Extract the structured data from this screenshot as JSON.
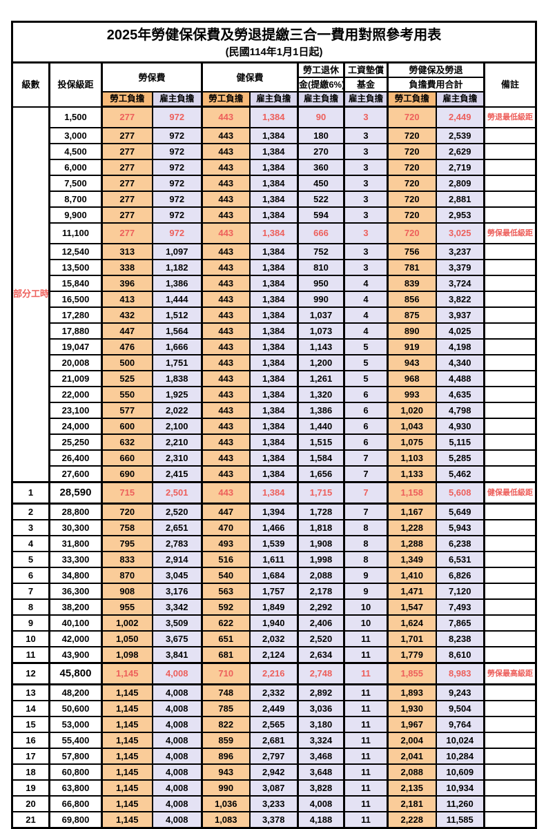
{
  "title": "2025年勞健保保費及勞退提繳三合一費用對照參考用表",
  "subtitle": "(民國114年1月1日起)",
  "header": {
    "level": "級數",
    "bracket": "投保級距",
    "labor_ins": "勞保費",
    "health_ins": "健保費",
    "pension_line1": "勞工退休",
    "pension_line2": "金(提繳6%)",
    "wage_fund_line1": "工資墊償",
    "wage_fund_line2": "基金",
    "total_line1": "勞健保及勞退",
    "total_line2": "負擔費用合計",
    "remark": "備註",
    "employee": "勞工負擔",
    "employer": "雇主負擔"
  },
  "part_time_label": "部分工時",
  "colors": {
    "employee_fill": "#FACC99",
    "employer_fill": "#E4E2F4",
    "employee_header_fill": "#F7BA79",
    "employer_header_fill": "#D9D6ED",
    "highlight_text": "#ED5F5B",
    "border": "#000000"
  },
  "rows": [
    {
      "level": "",
      "bracket": "1,500",
      "li_emp": "277",
      "li_er": "972",
      "hi_emp": "443",
      "hi_er": "1,384",
      "pension": "90",
      "fund": "3",
      "tot_emp": "720",
      "tot_er": "2,449",
      "remark": "勞退最低級距",
      "hl": true,
      "tb": false,
      "bb": false
    },
    {
      "level": "",
      "bracket": "3,000",
      "li_emp": "277",
      "li_er": "972",
      "hi_emp": "443",
      "hi_er": "1,384",
      "pension": "180",
      "fund": "3",
      "tot_emp": "720",
      "tot_er": "2,539",
      "remark": "",
      "hl": false,
      "tb": false,
      "bb": false
    },
    {
      "level": "",
      "bracket": "4,500",
      "li_emp": "277",
      "li_er": "972",
      "hi_emp": "443",
      "hi_er": "1,384",
      "pension": "270",
      "fund": "3",
      "tot_emp": "720",
      "tot_er": "2,629",
      "remark": "",
      "hl": false,
      "tb": false,
      "bb": false
    },
    {
      "level": "",
      "bracket": "6,000",
      "li_emp": "277",
      "li_er": "972",
      "hi_emp": "443",
      "hi_er": "1,384",
      "pension": "360",
      "fund": "3",
      "tot_emp": "720",
      "tot_er": "2,719",
      "remark": "",
      "hl": false,
      "tb": false,
      "bb": false
    },
    {
      "level": "",
      "bracket": "7,500",
      "li_emp": "277",
      "li_er": "972",
      "hi_emp": "443",
      "hi_er": "1,384",
      "pension": "450",
      "fund": "3",
      "tot_emp": "720",
      "tot_er": "2,809",
      "remark": "",
      "hl": false,
      "tb": false,
      "bb": false
    },
    {
      "level": "",
      "bracket": "8,700",
      "li_emp": "277",
      "li_er": "972",
      "hi_emp": "443",
      "hi_er": "1,384",
      "pension": "522",
      "fund": "3",
      "tot_emp": "720",
      "tot_er": "2,881",
      "remark": "",
      "hl": false,
      "tb": false,
      "bb": false
    },
    {
      "level": "",
      "bracket": "9,900",
      "li_emp": "277",
      "li_er": "972",
      "hi_emp": "443",
      "hi_er": "1,384",
      "pension": "594",
      "fund": "3",
      "tot_emp": "720",
      "tot_er": "2,953",
      "remark": "",
      "hl": false,
      "tb": false,
      "bb": false
    },
    {
      "level": "",
      "bracket": "11,100",
      "li_emp": "277",
      "li_er": "972",
      "hi_emp": "443",
      "hi_er": "1,384",
      "pension": "666",
      "fund": "3",
      "tot_emp": "720",
      "tot_er": "3,025",
      "remark": "勞保最低級距",
      "hl": true,
      "tb": false,
      "bb": false
    },
    {
      "level": "",
      "bracket": "12,540",
      "li_emp": "313",
      "li_er": "1,097",
      "hi_emp": "443",
      "hi_er": "1,384",
      "pension": "752",
      "fund": "3",
      "tot_emp": "756",
      "tot_er": "3,237",
      "remark": "",
      "hl": false,
      "tb": false,
      "bb": false
    },
    {
      "level": "",
      "bracket": "13,500",
      "li_emp": "338",
      "li_er": "1,182",
      "hi_emp": "443",
      "hi_er": "1,384",
      "pension": "810",
      "fund": "3",
      "tot_emp": "781",
      "tot_er": "3,379",
      "remark": "",
      "hl": false,
      "tb": false,
      "bb": false
    },
    {
      "level": "",
      "bracket": "15,840",
      "li_emp": "396",
      "li_er": "1,386",
      "hi_emp": "443",
      "hi_er": "1,384",
      "pension": "950",
      "fund": "4",
      "tot_emp": "839",
      "tot_er": "3,724",
      "remark": "",
      "hl": false,
      "tb": false,
      "bb": false
    },
    {
      "level": "",
      "bracket": "16,500",
      "li_emp": "413",
      "li_er": "1,444",
      "hi_emp": "443",
      "hi_er": "1,384",
      "pension": "990",
      "fund": "4",
      "tot_emp": "856",
      "tot_er": "3,822",
      "remark": "",
      "hl": false,
      "tb": false,
      "bb": false
    },
    {
      "level": "",
      "bracket": "17,280",
      "li_emp": "432",
      "li_er": "1,512",
      "hi_emp": "443",
      "hi_er": "1,384",
      "pension": "1,037",
      "fund": "4",
      "tot_emp": "875",
      "tot_er": "3,937",
      "remark": "",
      "hl": false,
      "tb": false,
      "bb": false
    },
    {
      "level": "",
      "bracket": "17,880",
      "li_emp": "447",
      "li_er": "1,564",
      "hi_emp": "443",
      "hi_er": "1,384",
      "pension": "1,073",
      "fund": "4",
      "tot_emp": "890",
      "tot_er": "4,025",
      "remark": "",
      "hl": false,
      "tb": false,
      "bb": false
    },
    {
      "level": "",
      "bracket": "19,047",
      "li_emp": "476",
      "li_er": "1,666",
      "hi_emp": "443",
      "hi_er": "1,384",
      "pension": "1,143",
      "fund": "5",
      "tot_emp": "919",
      "tot_er": "4,198",
      "remark": "",
      "hl": false,
      "tb": false,
      "bb": false
    },
    {
      "level": "",
      "bracket": "20,008",
      "li_emp": "500",
      "li_er": "1,751",
      "hi_emp": "443",
      "hi_er": "1,384",
      "pension": "1,200",
      "fund": "5",
      "tot_emp": "943",
      "tot_er": "4,340",
      "remark": "",
      "hl": false,
      "tb": false,
      "bb": false
    },
    {
      "level": "",
      "bracket": "21,009",
      "li_emp": "525",
      "li_er": "1,838",
      "hi_emp": "443",
      "hi_er": "1,384",
      "pension": "1,261",
      "fund": "5",
      "tot_emp": "968",
      "tot_er": "4,488",
      "remark": "",
      "hl": false,
      "tb": false,
      "bb": false
    },
    {
      "level": "",
      "bracket": "22,000",
      "li_emp": "550",
      "li_er": "1,925",
      "hi_emp": "443",
      "hi_er": "1,384",
      "pension": "1,320",
      "fund": "6",
      "tot_emp": "993",
      "tot_er": "4,635",
      "remark": "",
      "hl": false,
      "tb": false,
      "bb": false
    },
    {
      "level": "",
      "bracket": "23,100",
      "li_emp": "577",
      "li_er": "2,022",
      "hi_emp": "443",
      "hi_er": "1,384",
      "pension": "1,386",
      "fund": "6",
      "tot_emp": "1,020",
      "tot_er": "4,798",
      "remark": "",
      "hl": false,
      "tb": false,
      "bb": false
    },
    {
      "level": "",
      "bracket": "24,000",
      "li_emp": "600",
      "li_er": "2,100",
      "hi_emp": "443",
      "hi_er": "1,384",
      "pension": "1,440",
      "fund": "6",
      "tot_emp": "1,043",
      "tot_er": "4,930",
      "remark": "",
      "hl": false,
      "tb": false,
      "bb": false
    },
    {
      "level": "",
      "bracket": "25,250",
      "li_emp": "632",
      "li_er": "2,210",
      "hi_emp": "443",
      "hi_er": "1,384",
      "pension": "1,515",
      "fund": "6",
      "tot_emp": "1,075",
      "tot_er": "5,115",
      "remark": "",
      "hl": false,
      "tb": false,
      "bb": false
    },
    {
      "level": "",
      "bracket": "26,400",
      "li_emp": "660",
      "li_er": "2,310",
      "hi_emp": "443",
      "hi_er": "1,384",
      "pension": "1,584",
      "fund": "7",
      "tot_emp": "1,103",
      "tot_er": "5,285",
      "remark": "",
      "hl": false,
      "tb": false,
      "bb": false
    },
    {
      "level": "",
      "bracket": "27,600",
      "li_emp": "690",
      "li_er": "2,415",
      "hi_emp": "443",
      "hi_er": "1,384",
      "pension": "1,656",
      "fund": "7",
      "tot_emp": "1,133",
      "tot_er": "5,462",
      "remark": "",
      "hl": false,
      "tb": false,
      "bb": false
    },
    {
      "level": "1",
      "bracket": "28,590",
      "li_emp": "715",
      "li_er": "2,501",
      "hi_emp": "443",
      "hi_er": "1,384",
      "pension": "1,715",
      "fund": "7",
      "tot_emp": "1,158",
      "tot_er": "5,608",
      "remark": "健保最低級距",
      "hl": true,
      "tb": true,
      "bb": true
    },
    {
      "level": "2",
      "bracket": "28,800",
      "li_emp": "720",
      "li_er": "2,520",
      "hi_emp": "447",
      "hi_er": "1,394",
      "pension": "1,728",
      "fund": "7",
      "tot_emp": "1,167",
      "tot_er": "5,649",
      "remark": "",
      "hl": false,
      "tb": false,
      "bb": false
    },
    {
      "level": "3",
      "bracket": "30,300",
      "li_emp": "758",
      "li_er": "2,651",
      "hi_emp": "470",
      "hi_er": "1,466",
      "pension": "1,818",
      "fund": "8",
      "tot_emp": "1,228",
      "tot_er": "5,943",
      "remark": "",
      "hl": false,
      "tb": false,
      "bb": false
    },
    {
      "level": "4",
      "bracket": "31,800",
      "li_emp": "795",
      "li_er": "2,783",
      "hi_emp": "493",
      "hi_er": "1,539",
      "pension": "1,908",
      "fund": "8",
      "tot_emp": "1,288",
      "tot_er": "6,238",
      "remark": "",
      "hl": false,
      "tb": false,
      "bb": false
    },
    {
      "level": "5",
      "bracket": "33,300",
      "li_emp": "833",
      "li_er": "2,914",
      "hi_emp": "516",
      "hi_er": "1,611",
      "pension": "1,998",
      "fund": "8",
      "tot_emp": "1,349",
      "tot_er": "6,531",
      "remark": "",
      "hl": false,
      "tb": false,
      "bb": false
    },
    {
      "level": "6",
      "bracket": "34,800",
      "li_emp": "870",
      "li_er": "3,045",
      "hi_emp": "540",
      "hi_er": "1,684",
      "pension": "2,088",
      "fund": "9",
      "tot_emp": "1,410",
      "tot_er": "6,826",
      "remark": "",
      "hl": false,
      "tb": false,
      "bb": false
    },
    {
      "level": "7",
      "bracket": "36,300",
      "li_emp": "908",
      "li_er": "3,176",
      "hi_emp": "563",
      "hi_er": "1,757",
      "pension": "2,178",
      "fund": "9",
      "tot_emp": "1,471",
      "tot_er": "7,120",
      "remark": "",
      "hl": false,
      "tb": false,
      "bb": false
    },
    {
      "level": "8",
      "bracket": "38,200",
      "li_emp": "955",
      "li_er": "3,342",
      "hi_emp": "592",
      "hi_er": "1,849",
      "pension": "2,292",
      "fund": "10",
      "tot_emp": "1,547",
      "tot_er": "7,493",
      "remark": "",
      "hl": false,
      "tb": false,
      "bb": false
    },
    {
      "level": "9",
      "bracket": "40,100",
      "li_emp": "1,002",
      "li_er": "3,509",
      "hi_emp": "622",
      "hi_er": "1,940",
      "pension": "2,406",
      "fund": "10",
      "tot_emp": "1,624",
      "tot_er": "7,865",
      "remark": "",
      "hl": false,
      "tb": false,
      "bb": false
    },
    {
      "level": "10",
      "bracket": "42,000",
      "li_emp": "1,050",
      "li_er": "3,675",
      "hi_emp": "651",
      "hi_er": "2,032",
      "pension": "2,520",
      "fund": "11",
      "tot_emp": "1,701",
      "tot_er": "8,238",
      "remark": "",
      "hl": false,
      "tb": false,
      "bb": false
    },
    {
      "level": "11",
      "bracket": "43,900",
      "li_emp": "1,098",
      "li_er": "3,841",
      "hi_emp": "681",
      "hi_er": "2,124",
      "pension": "2,634",
      "fund": "11",
      "tot_emp": "1,779",
      "tot_er": "8,610",
      "remark": "",
      "hl": false,
      "tb": false,
      "bb": false
    },
    {
      "level": "12",
      "bracket": "45,800",
      "li_emp": "1,145",
      "li_er": "4,008",
      "hi_emp": "710",
      "hi_er": "2,216",
      "pension": "2,748",
      "fund": "11",
      "tot_emp": "1,855",
      "tot_er": "8,983",
      "remark": "勞保最高級距",
      "hl": true,
      "tb": true,
      "bb": true
    },
    {
      "level": "13",
      "bracket": "48,200",
      "li_emp": "1,145",
      "li_er": "4,008",
      "hi_emp": "748",
      "hi_er": "2,332",
      "pension": "2,892",
      "fund": "11",
      "tot_emp": "1,893",
      "tot_er": "9,243",
      "remark": "",
      "hl": false,
      "tb": false,
      "bb": false
    },
    {
      "level": "14",
      "bracket": "50,600",
      "li_emp": "1,145",
      "li_er": "4,008",
      "hi_emp": "785",
      "hi_er": "2,449",
      "pension": "3,036",
      "fund": "11",
      "tot_emp": "1,930",
      "tot_er": "9,504",
      "remark": "",
      "hl": false,
      "tb": false,
      "bb": false
    },
    {
      "level": "15",
      "bracket": "53,000",
      "li_emp": "1,145",
      "li_er": "4,008",
      "hi_emp": "822",
      "hi_er": "2,565",
      "pension": "3,180",
      "fund": "11",
      "tot_emp": "1,967",
      "tot_er": "9,764",
      "remark": "",
      "hl": false,
      "tb": false,
      "bb": false
    },
    {
      "level": "16",
      "bracket": "55,400",
      "li_emp": "1,145",
      "li_er": "4,008",
      "hi_emp": "859",
      "hi_er": "2,681",
      "pension": "3,324",
      "fund": "11",
      "tot_emp": "2,004",
      "tot_er": "10,024",
      "remark": "",
      "hl": false,
      "tb": false,
      "bb": false
    },
    {
      "level": "17",
      "bracket": "57,800",
      "li_emp": "1,145",
      "li_er": "4,008",
      "hi_emp": "896",
      "hi_er": "2,797",
      "pension": "3,468",
      "fund": "11",
      "tot_emp": "2,041",
      "tot_er": "10,284",
      "remark": "",
      "hl": false,
      "tb": false,
      "bb": false
    },
    {
      "level": "18",
      "bracket": "60,800",
      "li_emp": "1,145",
      "li_er": "4,008",
      "hi_emp": "943",
      "hi_er": "2,942",
      "pension": "3,648",
      "fund": "11",
      "tot_emp": "2,088",
      "tot_er": "10,609",
      "remark": "",
      "hl": false,
      "tb": false,
      "bb": false
    },
    {
      "level": "19",
      "bracket": "63,800",
      "li_emp": "1,145",
      "li_er": "4,008",
      "hi_emp": "990",
      "hi_er": "3,087",
      "pension": "3,828",
      "fund": "11",
      "tot_emp": "2,135",
      "tot_er": "10,934",
      "remark": "",
      "hl": false,
      "tb": false,
      "bb": false
    },
    {
      "level": "20",
      "bracket": "66,800",
      "li_emp": "1,145",
      "li_er": "4,008",
      "hi_emp": "1,036",
      "hi_er": "3,233",
      "pension": "4,008",
      "fund": "11",
      "tot_emp": "2,181",
      "tot_er": "11,260",
      "remark": "",
      "hl": false,
      "tb": false,
      "bb": false
    },
    {
      "level": "21",
      "bracket": "69,800",
      "li_emp": "1,145",
      "li_er": "4,008",
      "hi_emp": "1,083",
      "hi_er": "3,378",
      "pension": "4,188",
      "fund": "11",
      "tot_emp": "2,228",
      "tot_er": "11,585",
      "remark": "",
      "hl": false,
      "tb": false,
      "bb": false
    }
  ]
}
